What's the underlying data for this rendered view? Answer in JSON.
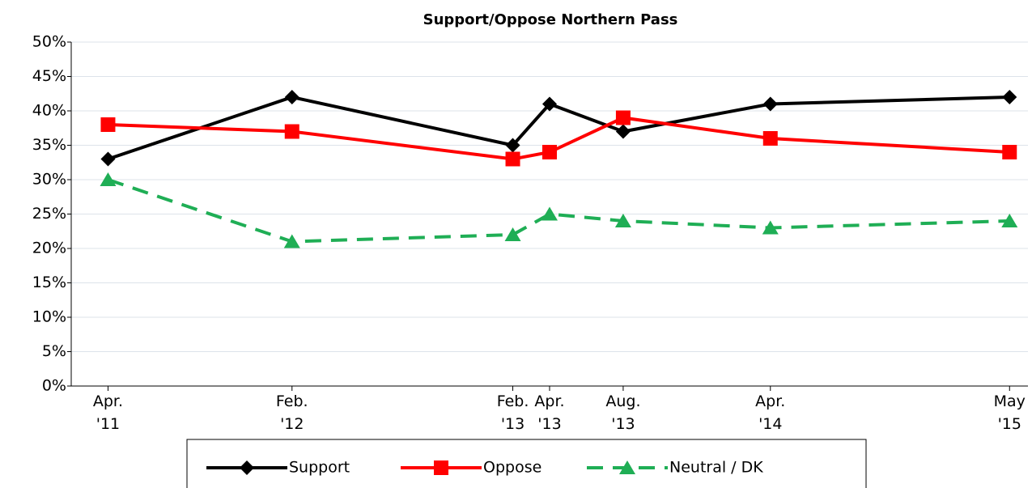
{
  "chart_data": {
    "type": "line",
    "title": "Support/Oppose Northern Pass",
    "x": [
      "2011-04",
      "2012-02",
      "2013-02",
      "2013-04",
      "2013-08",
      "2014-04",
      "2015-05"
    ],
    "xlim": [
      "2011-02",
      "2015-06"
    ],
    "xticks": [
      {
        "value": "2011-04",
        "label": "Apr.\n'11"
      },
      {
        "value": "2012-02",
        "label": "Feb.\n'12"
      },
      {
        "value": "2013-02",
        "label": "Feb.\n'13"
      },
      {
        "value": "2013-04",
        "label": "Apr.\n'13"
      },
      {
        "value": "2013-08",
        "label": "Aug.\n'13"
      },
      {
        "value": "2014-04",
        "label": "Apr.\n'14"
      },
      {
        "value": "2015-05",
        "label": "May\n'15"
      }
    ],
    "series": [
      {
        "name": "Support",
        "color": "#000000",
        "marker": "diamond",
        "line_style": "solid",
        "values": [
          33,
          42,
          35,
          41,
          37,
          41,
          42
        ]
      },
      {
        "name": "Oppose",
        "color": "#ff0000",
        "marker": "square",
        "line_style": "solid",
        "values": [
          38,
          37,
          33,
          34,
          39,
          36,
          34
        ]
      },
      {
        "name": "Neutral / DK",
        "color": "#1fae55",
        "marker": "triangle",
        "line_style": "dashed",
        "values": [
          30,
          21,
          22,
          25,
          24,
          23,
          24
        ]
      }
    ],
    "ylim": [
      0,
      50
    ],
    "yticks": [
      {
        "value": 0,
        "label": "0%"
      },
      {
        "value": 5,
        "label": "5%"
      },
      {
        "value": 10,
        "label": "10%"
      },
      {
        "value": 15,
        "label": "15%"
      },
      {
        "value": 20,
        "label": "20%"
      },
      {
        "value": 25,
        "label": "25%"
      },
      {
        "value": 30,
        "label": "30%"
      },
      {
        "value": 35,
        "label": "35%"
      },
      {
        "value": 40,
        "label": "40%"
      },
      {
        "value": 45,
        "label": "45%"
      },
      {
        "value": 50,
        "label": "50%"
      }
    ],
    "grid": true,
    "legend": "bottom"
  }
}
